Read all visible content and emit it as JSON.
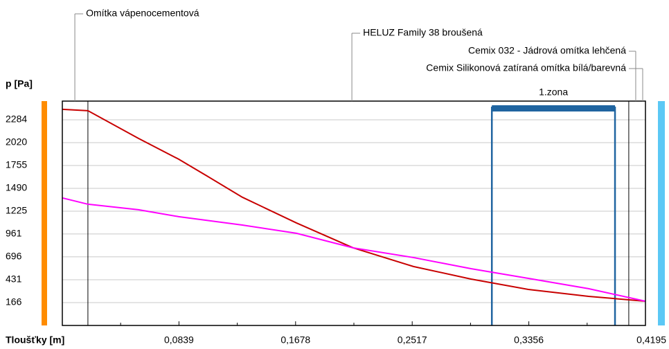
{
  "chart_data": {
    "type": "line",
    "y_label": "p [Pa]",
    "x_label": "Tloušťky [m]",
    "xlim": [
      0,
      0.4195
    ],
    "ylim": [
      -99,
      2501
    ],
    "yticks": [
      166,
      431,
      696,
      961,
      1225,
      1490,
      1755,
      2020,
      2284
    ],
    "xticks": [
      {
        "value": 0.0839,
        "label": "0,0839"
      },
      {
        "value": 0.1678,
        "label": "0,1678"
      },
      {
        "value": 0.2517,
        "label": "0,2517"
      },
      {
        "value": 0.3356,
        "label": "0,3356"
      },
      {
        "value": 0.4195,
        "label": "0,4195"
      }
    ],
    "grid": true,
    "layers": [
      {
        "name": "Omítka vápenocementová",
        "x": 0.009
      },
      {
        "name": "HELUZ Family 38 broušená",
        "x": 0.2083
      },
      {
        "name": "Cemix 032 - Jádrová omítka lehčená",
        "x": 0.4125
      },
      {
        "name": "Cemix Silikonová zatíraná omítka bílá/barevná",
        "x": 0.4175
      }
    ],
    "layer_boundaries": [
      0.0184,
      0.4075
    ],
    "zone": {
      "label": "1.zona",
      "x": [
        0.309,
        0.3976
      ],
      "color": "#1f64a0"
    },
    "inside_color": "#ff8c00",
    "outside_color": "#5bc8f5",
    "series": [
      {
        "color": "#c80000",
        "x": [
          0,
          0.0184,
          0.0548,
          0.0837,
          0.1046,
          0.1295,
          0.1684,
          0.2093,
          0.2526,
          0.294,
          0.3353,
          0.3786,
          0.4195
        ],
        "values": [
          2406,
          2390,
          2069,
          1828,
          1628,
          1387,
          1089,
          800,
          584,
          439,
          318,
          238,
          182
        ]
      },
      {
        "color": "#ff00ff",
        "x": [
          0,
          0.0184,
          0.0548,
          0.0837,
          0.1295,
          0.1684,
          0.2093,
          0.2526,
          0.294,
          0.3353,
          0.3786,
          0.4195
        ],
        "values": [
          1379,
          1306,
          1242,
          1162,
          1065,
          969,
          800,
          688,
          559,
          447,
          327,
          182
        ]
      }
    ]
  }
}
